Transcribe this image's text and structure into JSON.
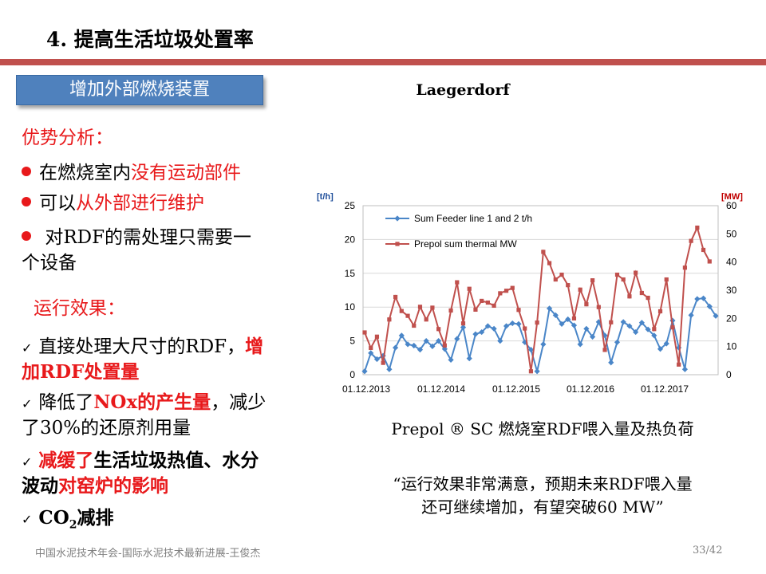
{
  "slide": {
    "title": "4. 提高生活垃圾处置率",
    "section_label": "增加外部燃烧装置"
  },
  "advantages": {
    "heading": "优势分析：",
    "items": [
      {
        "normal": "在燃烧室内",
        "highlight": "没有运动部件"
      },
      {
        "normal": "可以",
        "highlight": "从外部进行维护"
      },
      {
        "line1": "对RDF的需处理只需要一",
        "line2": "个设备"
      }
    ]
  },
  "effects": {
    "heading": "运行效果：",
    "item1": {
      "line1_normal": "直接处理大尺寸的RDF，",
      "line1_highlight": "增",
      "line2_highlight": "加RDF处置量"
    },
    "item2": {
      "line1_normal_a": "降低了",
      "line1_highlight": "NOx的产生量",
      "line1_normal_b": "，减少",
      "line2_normal": "了30%的还原剂用量"
    },
    "item3": {
      "line1_highlight": "减缓了",
      "line1_bold": "生活垃圾热值、水分",
      "line2_bold": "波动",
      "line2_highlight": "对窑炉的影响"
    },
    "item4": {
      "co": "CO",
      "sub": "2",
      "rest": "减排"
    }
  },
  "caption": "Prepol ®  SC 燃烧室RDF喂入量及热负荷",
  "quote": {
    "line1": "“运行效果非常满意，预期未来RDF喂入量",
    "line2": "还可继续增加，有望突破60 MW”"
  },
  "footer": "中国水泥技术年会-国际水泥技术最新进展-王俊杰",
  "page_number": "33/42",
  "colors": {
    "accent_red": "#c0504d",
    "text_red": "#e8191b",
    "section_blue": "#4f81bd",
    "series_blue": "#4a86c8",
    "series_red": "#c0504d",
    "unit_left": "#1f4e9a",
    "unit_right": "#c00000"
  },
  "chart_data": {
    "type": "line",
    "title": "Laegerdorf",
    "y_left_unit": "[t/h]",
    "y_right_unit": "[MW]",
    "y_left_range": [
      0,
      25
    ],
    "y_right_range": [
      0,
      60
    ],
    "y_left_ticks": [
      "0",
      "5",
      "10",
      "15",
      "20",
      "25"
    ],
    "y_right_ticks": [
      "0",
      "10",
      "20",
      "30",
      "40",
      "50",
      "60"
    ],
    "x_tick_labels": [
      "01.12.2013",
      "01.12.2014",
      "01.12.2015",
      "01.12.2016",
      "01.12.2017"
    ],
    "legend_position": "top-left",
    "grid": "horizontal",
    "series": [
      {
        "name": "Sum Feeder line 1 and 2 t/h",
        "axis": "left",
        "marker": "diamond",
        "values": [
          0.5,
          3.2,
          2.3,
          2.8,
          0.8,
          4.0,
          5.8,
          4.5,
          4.3,
          3.7,
          5.0,
          4.2,
          5.0,
          3.8,
          2.2,
          5.3,
          7.0,
          2.4,
          6.0,
          6.3,
          7.2,
          6.8,
          5.0,
          7.2,
          7.6,
          7.5,
          4.8,
          3.7,
          0.5,
          4.5,
          9.8,
          8.8,
          7.5,
          8.2,
          7.3,
          4.5,
          6.8,
          5.6,
          7.8,
          5.8,
          1.8,
          4.8,
          7.8,
          7.2,
          6.3,
          7.7,
          6.7,
          5.8,
          3.8,
          4.6,
          8.0,
          4.0,
          0.8,
          8.8,
          11.2,
          11.3,
          10.1,
          8.7
        ]
      },
      {
        "name": "Prepol sum thermal MW",
        "axis": "right",
        "marker": "square",
        "values": [
          15.0,
          9.5,
          13.5,
          4.2,
          19.6,
          27.6,
          22.6,
          20.9,
          17.4,
          24.1,
          19.6,
          23.8,
          16.2,
          10.4,
          22.8,
          32.8,
          18.2,
          30.5,
          23.1,
          26.2,
          25.6,
          24.5,
          28.9,
          29.8,
          30.8,
          23.0,
          16.4,
          1.2,
          18.5,
          43.6,
          39.6,
          33.8,
          35.5,
          31.8,
          20.0,
          30.2,
          25.0,
          33.5,
          24.0,
          8.8,
          18.6,
          35.5,
          33.8,
          27.8,
          36.2,
          29.0,
          27.3,
          16.2,
          22.5,
          33.8,
          16.8,
          3.6,
          38.0,
          47.5,
          52.2,
          44.3,
          40.2
        ]
      }
    ]
  }
}
